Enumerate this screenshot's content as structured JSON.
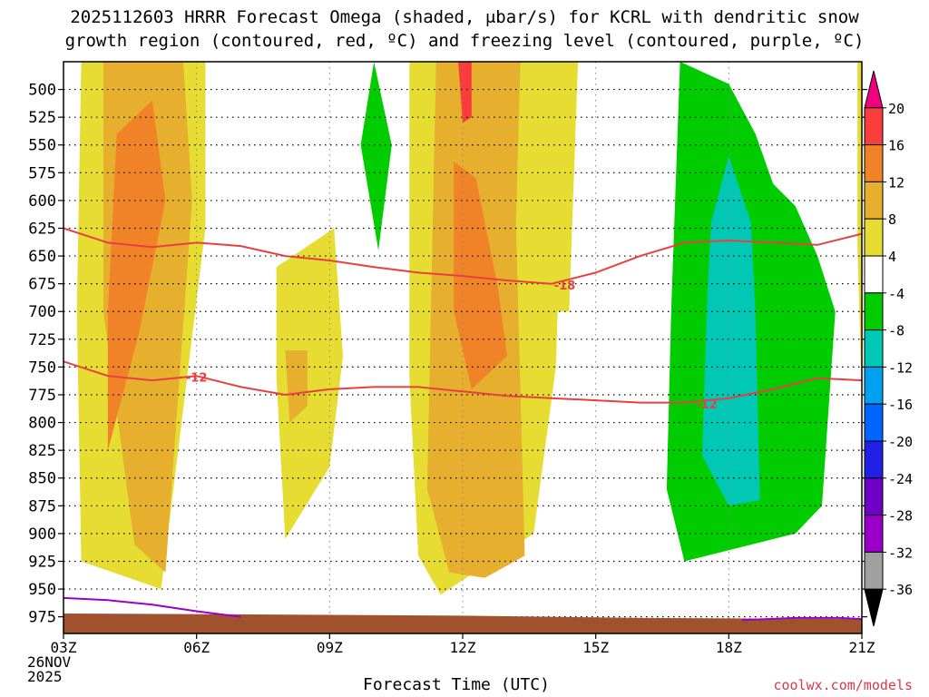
{
  "title_line1": "2025112603 HRRR Forecast Omega (shaded, μbar/s) for KCRL with dendritic snow",
  "title_line2": "growth region (contoured, red, ºC) and freezing level (contoured, purple, ºC)",
  "credit": "coolwx.com/models",
  "x_date_line1": "26NOV",
  "x_date_line2": "2025",
  "chart_data": {
    "type": "heatmap",
    "xlabel": "Forecast Time (UTC)",
    "ylabel": "",
    "x_ticks": [
      "03Z",
      "06Z",
      "09Z",
      "12Z",
      "15Z",
      "18Z",
      "21Z"
    ],
    "x_range_hours": [
      3,
      21
    ],
    "y_ticks": [
      500,
      525,
      550,
      575,
      600,
      625,
      650,
      675,
      700,
      725,
      750,
      775,
      800,
      825,
      850,
      875,
      900,
      925,
      950,
      975
    ],
    "y_range_mb": [
      475,
      990
    ],
    "colorbar": {
      "levels": [
        -36,
        -32,
        -28,
        -24,
        -20,
        -16,
        -12,
        -8,
        -4,
        4,
        8,
        12,
        16,
        20
      ],
      "colors": [
        "#000000",
        "#a0a0a0",
        "#9a00c8",
        "#6e00c8",
        "#2020e6",
        "#0064ff",
        "#00a0f0",
        "#00c8b4",
        "#00cc00",
        "#ffffff",
        "#e6dc32",
        "#e6af2d",
        "#f08228",
        "#fa3c3c",
        "#f0007f"
      ]
    },
    "omega_regions": [
      {
        "color": "#e6dc32",
        "t": [
          3.4,
          6.2,
          6.2,
          5.2,
          3.4,
          3.3
        ],
        "p": [
          475,
          475,
          625,
          950,
          925,
          700
        ]
      },
      {
        "color": "#e6af2d",
        "t": [
          3.9,
          5.7,
          5.9,
          5.3,
          4.6,
          3.9
        ],
        "p": [
          475,
          475,
          600,
          935,
          910,
          700
        ]
      },
      {
        "color": "#f08228",
        "t": [
          4.2,
          5.0,
          5.3,
          4.7,
          4.0,
          4.0
        ],
        "p": [
          540,
          510,
          600,
          720,
          825,
          700
        ]
      },
      {
        "color": "#e6dc32",
        "t": [
          7.8,
          9.1,
          9.3,
          9.0,
          8.0,
          7.8
        ],
        "p": [
          660,
          625,
          740,
          840,
          905,
          760
        ]
      },
      {
        "color": "#e6af2d",
        "t": [
          8.0,
          8.5,
          8.5,
          8.1
        ],
        "p": [
          735,
          735,
          785,
          800
        ]
      },
      {
        "color": "#00cc00",
        "t": [
          9.7,
          10.0,
          10.4,
          10.1
        ],
        "p": [
          550,
          475,
          550,
          645
        ]
      },
      {
        "color": "#e6dc32",
        "t": [
          10.8,
          14.0,
          14.2,
          14.1,
          13.6,
          11.5,
          11.0,
          10.8
        ],
        "p": [
          475,
          475,
          625,
          750,
          900,
          955,
          920,
          760
        ]
      },
      {
        "color": "#e6af2d",
        "t": [
          11.4,
          13.3,
          13.2,
          13.4,
          12.5,
          11.7,
          11.2
        ],
        "p": [
          475,
          475,
          620,
          920,
          940,
          935,
          860
        ]
      },
      {
        "color": "#f08228",
        "t": [
          11.8,
          12.3,
          12.8,
          13.0,
          12.2,
          11.8
        ],
        "p": [
          565,
          580,
          680,
          740,
          770,
          700
        ]
      },
      {
        "color": "#fa3c3c",
        "t": [
          11.9,
          12.2,
          12.2,
          12.0
        ],
        "p": [
          475,
          475,
          525,
          530
        ]
      },
      {
        "color": "#e6dc32",
        "t": [
          14.0,
          14.6,
          14.4,
          14.0
        ],
        "p": [
          475,
          475,
          700,
          700
        ]
      },
      {
        "color": "#00cc00",
        "t": [
          16.9,
          18.0,
          18.6,
          19.0,
          19.5,
          20.0,
          20.4,
          20.1,
          19.5,
          17.0,
          16.6,
          16.7
        ],
        "p": [
          475,
          495,
          540,
          585,
          605,
          650,
          700,
          875,
          900,
          925,
          860,
          700
        ]
      },
      {
        "color": "#00c8b4",
        "t": [
          17.6,
          18.0,
          18.5,
          18.6,
          18.7,
          18.0,
          17.4,
          17.5
        ],
        "p": [
          620,
          560,
          620,
          700,
          870,
          875,
          830,
          700
        ]
      },
      {
        "color": "#e6dc32",
        "t": [
          20.9,
          21.0,
          21.0,
          20.9
        ],
        "p": [
          475,
          475,
          780,
          640
        ]
      }
    ],
    "dgz_contours": [
      {
        "label": "-18",
        "color": "#e84040",
        "t": [
          3.0,
          4.0,
          5.0,
          6.0,
          7.0,
          8.0,
          9.0,
          10.0,
          11.0,
          12.0,
          13.0,
          14.0,
          15.0,
          16.0,
          17.0,
          18.0,
          19.0,
          20.0,
          21.0
        ],
        "p": [
          625,
          638,
          642,
          638,
          641,
          650,
          654,
          660,
          665,
          668,
          672,
          675,
          665,
          650,
          638,
          636,
          638,
          640,
          630
        ]
      },
      {
        "label": "-12",
        "color": "#e84040",
        "t": [
          3.0,
          4.0,
          5.0,
          6.0,
          7.0,
          8.0,
          9.0,
          10.0,
          11.0,
          12.0,
          13.0,
          14.0,
          15.0,
          16.0,
          17.0,
          18.0,
          19.0,
          20.0,
          21.0
        ],
        "p": [
          745,
          758,
          762,
          758,
          768,
          775,
          770,
          768,
          768,
          772,
          776,
          778,
          780,
          782,
          782,
          778,
          770,
          760,
          762
        ]
      }
    ],
    "contour_labels": [
      {
        "text": "-18",
        "t": 14.3,
        "p": 676
      },
      {
        "text": "-12",
        "t": 6.0,
        "p": 759
      },
      {
        "text": "-12",
        "t": 17.5,
        "p": 783
      }
    ],
    "freezing_level": [
      {
        "color": "#9a00c8",
        "t": [
          3.0,
          4.0,
          5.0,
          6.0,
          7.0
        ],
        "p": [
          958,
          960,
          964,
          970,
          975
        ]
      },
      {
        "color": "#9a00c8",
        "t": [
          18.3,
          19.5,
          20.5,
          21.0
        ],
        "p": [
          978,
          976,
          976,
          977
        ]
      }
    ],
    "terrain": {
      "color": "#a0522d",
      "t": [
        3.0,
        8.0,
        12.0,
        16.0,
        21.0
      ],
      "p": [
        972,
        973,
        974,
        976,
        977
      ]
    }
  }
}
